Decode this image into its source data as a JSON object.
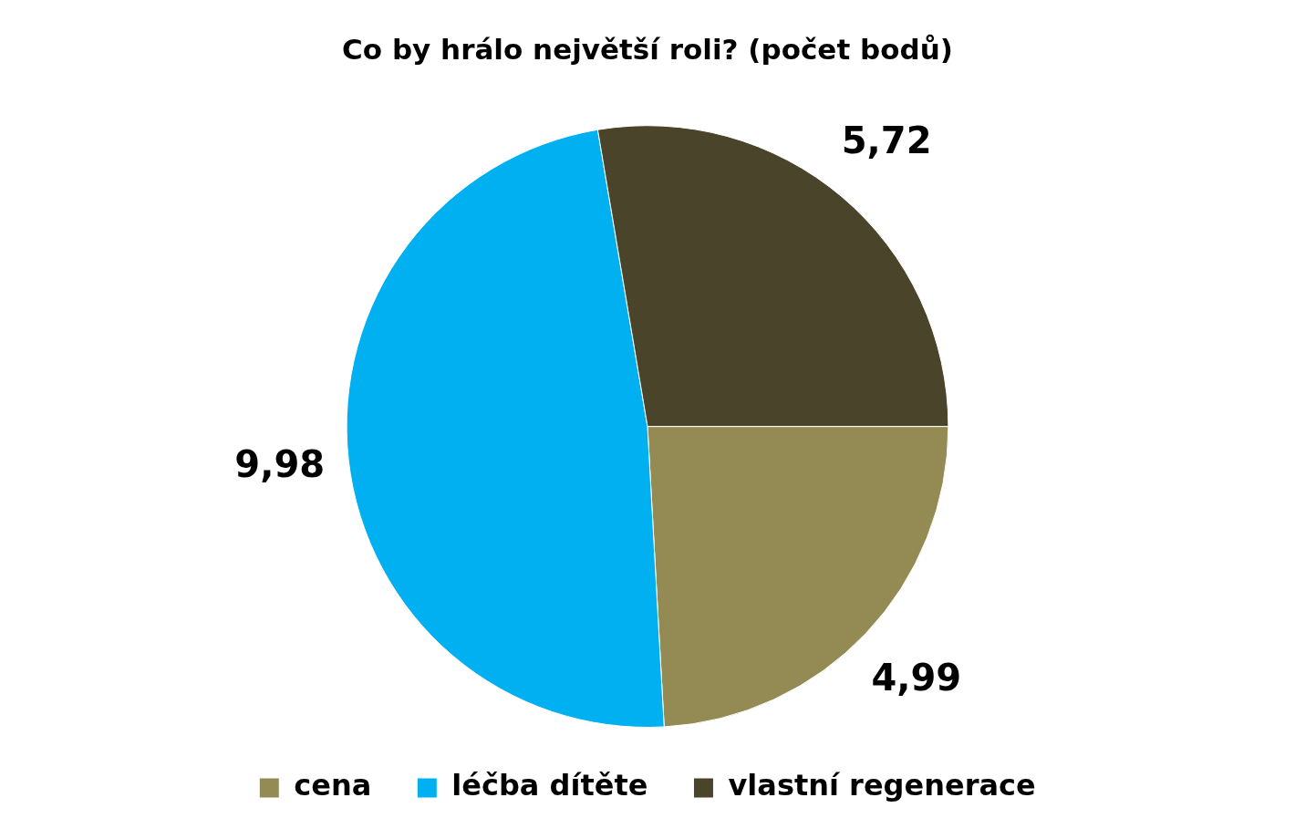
{
  "chart_data": {
    "type": "pie",
    "title": "Co by hrálo největší roli? (počet bodů)",
    "categories": [
      "cena",
      "léčba dítěte",
      "vlastní regenerace"
    ],
    "values": [
      4.99,
      9.98,
      5.72
    ],
    "value_labels": [
      "4,99",
      "9,98",
      "5,72"
    ],
    "colors": [
      "#948a54",
      "#00b0f0",
      "#4a452a"
    ],
    "legend": "bottom"
  }
}
